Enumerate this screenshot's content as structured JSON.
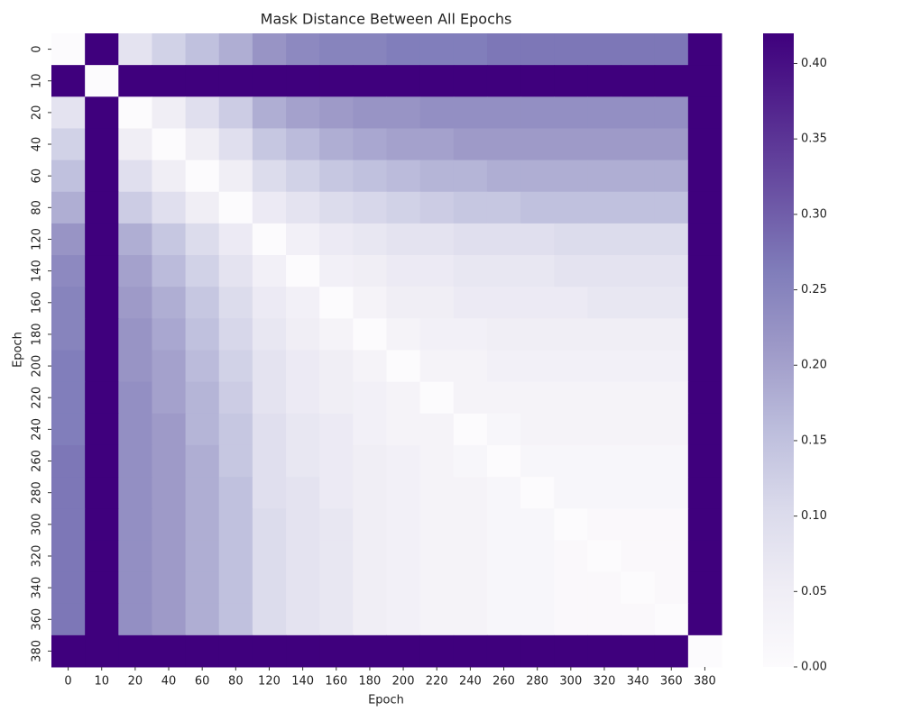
{
  "chart_data": {
    "type": "heatmap",
    "title": "Mask Distance Between All Epochs",
    "xlabel": "Epoch",
    "ylabel": "Epoch",
    "x_categories": [
      "0",
      "10",
      "20",
      "40",
      "60",
      "80",
      "120",
      "140",
      "160",
      "180",
      "200",
      "220",
      "240",
      "260",
      "280",
      "300",
      "320",
      "340",
      "360",
      "380"
    ],
    "y_categories": [
      "0",
      "10",
      "20",
      "40",
      "60",
      "80",
      "120",
      "140",
      "160",
      "180",
      "200",
      "220",
      "240",
      "260",
      "280",
      "300",
      "320",
      "340",
      "360",
      "380"
    ],
    "colormap": "Purples",
    "clim": [
      0,
      0.42
    ],
    "cticks": [
      {
        "value": 0,
        "label": "0.00"
      },
      {
        "value": 0.05,
        "label": "0.05"
      },
      {
        "value": 0.1,
        "label": "0.10"
      },
      {
        "value": 0.15,
        "label": "0.15"
      },
      {
        "value": 0.2,
        "label": "0.20"
      },
      {
        "value": 0.25,
        "label": "0.25"
      },
      {
        "value": 0.3,
        "label": "0.30"
      },
      {
        "value": 0.35,
        "label": "0.35"
      },
      {
        "value": 0.4,
        "label": "0.40"
      }
    ],
    "values": [
      [
        0,
        0.42,
        0.08,
        0.12,
        0.15,
        0.18,
        0.22,
        0.24,
        0.25,
        0.25,
        0.26,
        0.26,
        0.26,
        0.27,
        0.27,
        0.27,
        0.27,
        0.27,
        0.27,
        0.42
      ],
      [
        0.42,
        0,
        0.42,
        0.42,
        0.42,
        0.42,
        0.42,
        0.42,
        0.42,
        0.42,
        0.42,
        0.42,
        0.42,
        0.42,
        0.42,
        0.42,
        0.42,
        0.42,
        0.42,
        0.42
      ],
      [
        0.08,
        0.42,
        0,
        0.05,
        0.09,
        0.13,
        0.18,
        0.2,
        0.21,
        0.22,
        0.22,
        0.23,
        0.23,
        0.23,
        0.23,
        0.23,
        0.23,
        0.23,
        0.23,
        0.42
      ],
      [
        0.12,
        0.42,
        0.05,
        0,
        0.05,
        0.09,
        0.14,
        0.16,
        0.18,
        0.19,
        0.2,
        0.2,
        0.21,
        0.21,
        0.21,
        0.21,
        0.21,
        0.21,
        0.21,
        0.42
      ],
      [
        0.15,
        0.42,
        0.09,
        0.05,
        0,
        0.05,
        0.1,
        0.12,
        0.14,
        0.15,
        0.16,
        0.17,
        0.17,
        0.18,
        0.18,
        0.18,
        0.18,
        0.18,
        0.18,
        0.42
      ],
      [
        0.18,
        0.42,
        0.13,
        0.09,
        0.05,
        0,
        0.06,
        0.08,
        0.1,
        0.11,
        0.12,
        0.13,
        0.14,
        0.14,
        0.15,
        0.15,
        0.15,
        0.15,
        0.15,
        0.42
      ],
      [
        0.22,
        0.42,
        0.18,
        0.14,
        0.1,
        0.06,
        0,
        0.04,
        0.06,
        0.07,
        0.08,
        0.08,
        0.09,
        0.09,
        0.09,
        0.1,
        0.1,
        0.1,
        0.1,
        0.42
      ],
      [
        0.24,
        0.42,
        0.2,
        0.16,
        0.12,
        0.08,
        0.04,
        0,
        0.04,
        0.05,
        0.06,
        0.06,
        0.07,
        0.07,
        0.07,
        0.08,
        0.08,
        0.08,
        0.08,
        0.42
      ],
      [
        0.25,
        0.42,
        0.21,
        0.18,
        0.14,
        0.1,
        0.06,
        0.04,
        0,
        0.03,
        0.05,
        0.05,
        0.06,
        0.06,
        0.06,
        0.06,
        0.07,
        0.07,
        0.07,
        0.42
      ],
      [
        0.25,
        0.42,
        0.22,
        0.19,
        0.15,
        0.11,
        0.07,
        0.05,
        0.03,
        0,
        0.03,
        0.04,
        0.04,
        0.05,
        0.05,
        0.05,
        0.05,
        0.05,
        0.05,
        0.42
      ],
      [
        0.26,
        0.42,
        0.22,
        0.2,
        0.16,
        0.12,
        0.08,
        0.06,
        0.05,
        0.03,
        0,
        0.03,
        0.03,
        0.04,
        0.04,
        0.04,
        0.04,
        0.04,
        0.04,
        0.42
      ],
      [
        0.26,
        0.42,
        0.23,
        0.2,
        0.17,
        0.13,
        0.08,
        0.06,
        0.05,
        0.04,
        0.03,
        0,
        0.03,
        0.03,
        0.03,
        0.03,
        0.03,
        0.03,
        0.03,
        0.42
      ],
      [
        0.26,
        0.42,
        0.23,
        0.21,
        0.17,
        0.14,
        0.09,
        0.07,
        0.06,
        0.04,
        0.03,
        0.03,
        0,
        0.02,
        0.03,
        0.03,
        0.03,
        0.03,
        0.03,
        0.42
      ],
      [
        0.27,
        0.42,
        0.23,
        0.21,
        0.18,
        0.14,
        0.09,
        0.07,
        0.06,
        0.05,
        0.04,
        0.03,
        0.02,
        0,
        0.02,
        0.02,
        0.02,
        0.02,
        0.02,
        0.42
      ],
      [
        0.27,
        0.42,
        0.23,
        0.21,
        0.18,
        0.15,
        0.09,
        0.08,
        0.06,
        0.05,
        0.04,
        0.03,
        0.03,
        0.02,
        0,
        0.02,
        0.02,
        0.02,
        0.02,
        0.42
      ],
      [
        0.27,
        0.42,
        0.23,
        0.21,
        0.18,
        0.15,
        0.1,
        0.08,
        0.07,
        0.05,
        0.04,
        0.03,
        0.03,
        0.02,
        0.02,
        0,
        0.01,
        0.01,
        0.01,
        0.42
      ],
      [
        0.27,
        0.42,
        0.23,
        0.21,
        0.18,
        0.15,
        0.1,
        0.08,
        0.07,
        0.05,
        0.04,
        0.03,
        0.03,
        0.02,
        0.02,
        0.01,
        0,
        0.01,
        0.01,
        0.42
      ],
      [
        0.27,
        0.42,
        0.23,
        0.21,
        0.18,
        0.15,
        0.1,
        0.08,
        0.07,
        0.05,
        0.04,
        0.03,
        0.03,
        0.02,
        0.02,
        0.01,
        0.01,
        0,
        0.01,
        0.42
      ],
      [
        0.27,
        0.42,
        0.23,
        0.21,
        0.18,
        0.15,
        0.1,
        0.08,
        0.07,
        0.05,
        0.04,
        0.03,
        0.03,
        0.02,
        0.02,
        0.01,
        0.01,
        0.01,
        0,
        0.42
      ],
      [
        0.42,
        0.42,
        0.42,
        0.42,
        0.42,
        0.42,
        0.42,
        0.42,
        0.42,
        0.42,
        0.42,
        0.42,
        0.42,
        0.42,
        0.42,
        0.42,
        0.42,
        0.42,
        0.42,
        0
      ]
    ]
  }
}
